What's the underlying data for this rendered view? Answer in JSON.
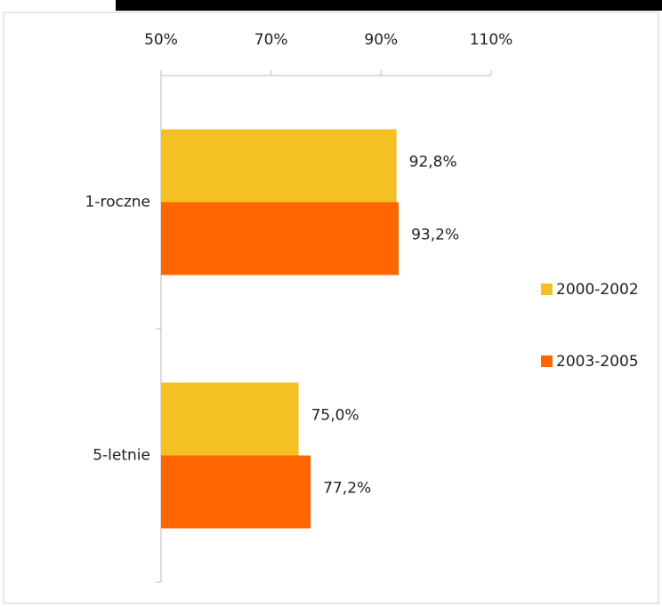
{
  "chart_data": {
    "type": "hbar",
    "categories": [
      "1-roczne",
      "5-letnie"
    ],
    "series": [
      {
        "name": "2000-2002",
        "color": "#f5c023",
        "values": [
          92.8,
          75.0
        ],
        "value_labels": [
          "92,8%",
          "75,0%"
        ]
      },
      {
        "name": "2003-2005",
        "color": "#ff6600",
        "values": [
          93.2,
          77.2
        ],
        "value_labels": [
          "93,2%",
          "77,2%"
        ]
      }
    ],
    "xlim": [
      50,
      110
    ],
    "xticks": [
      {
        "value": 50,
        "label": "50%"
      },
      {
        "value": 70,
        "label": "70%"
      },
      {
        "value": 90,
        "label": "90%"
      },
      {
        "value": 110,
        "label": "110%"
      }
    ],
    "legend": "right"
  }
}
